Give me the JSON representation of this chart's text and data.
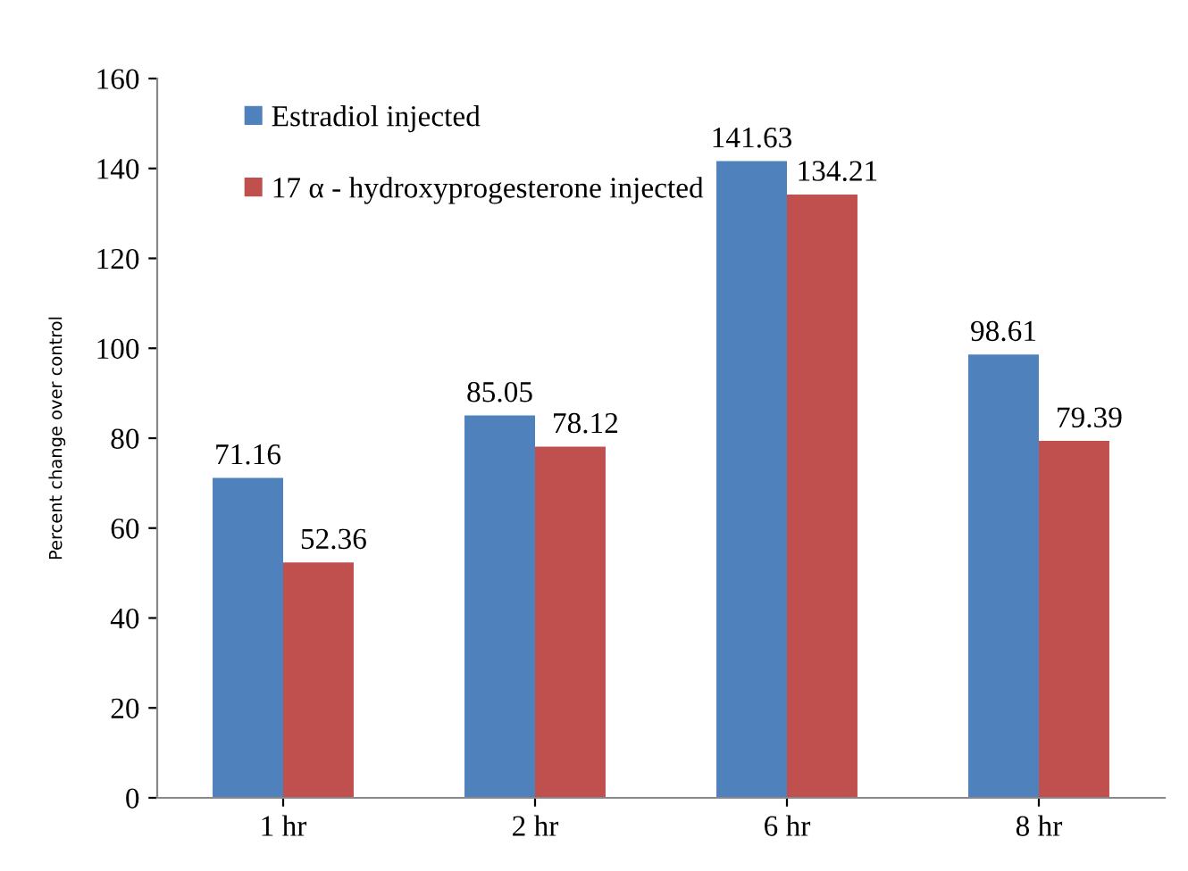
{
  "chart_data": {
    "type": "bar",
    "ylabel": "Percent change over control",
    "categories": [
      "1 hr",
      "2 hr",
      "6 hr",
      "8 hr"
    ],
    "series": [
      {
        "name": "Estradiol injected",
        "color": "#4f81bd",
        "values": [
          71.16,
          85.05,
          141.63,
          98.61
        ]
      },
      {
        "name": "17 α - hydroxyprogesterone injected",
        "color": "#c0504d",
        "values": [
          52.36,
          78.12,
          134.21,
          79.39
        ]
      }
    ],
    "ylim": [
      0,
      160
    ],
    "yticks": [
      0,
      20,
      40,
      60,
      80,
      100,
      120,
      140,
      160
    ],
    "data_labels": true,
    "grid": false,
    "legend": "top left"
  }
}
